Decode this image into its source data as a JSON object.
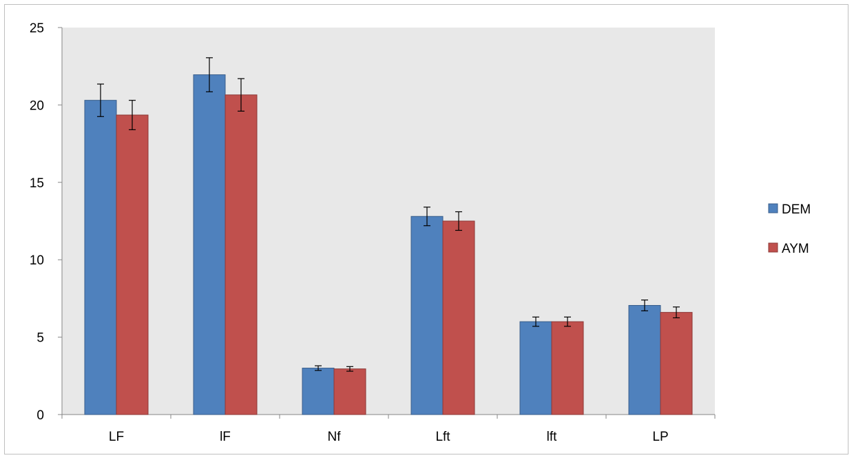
{
  "chart_data": {
    "type": "bar",
    "categories": [
      "LF",
      "lF",
      "Nf",
      "Lft",
      "lft",
      "LP"
    ],
    "series": [
      {
        "name": "DEM",
        "color": "#4F81BD",
        "values": [
          20.3,
          21.95,
          3.0,
          12.8,
          6.0,
          7.05
        ],
        "errors": [
          1.05,
          1.1,
          0.15,
          0.6,
          0.3,
          0.35
        ]
      },
      {
        "name": "AYM",
        "color": "#C0504D",
        "values": [
          19.35,
          20.65,
          2.95,
          12.5,
          6.0,
          6.6
        ],
        "errors": [
          0.95,
          1.05,
          0.15,
          0.6,
          0.3,
          0.35
        ]
      }
    ],
    "yticks": [
      0,
      5,
      10,
      15,
      20,
      25
    ],
    "ylim": [
      0,
      25
    ],
    "title": "",
    "xlabel": "",
    "ylabel": "",
    "grid": false,
    "plot_background": "#E8E8E8",
    "legend_position": "right"
  }
}
